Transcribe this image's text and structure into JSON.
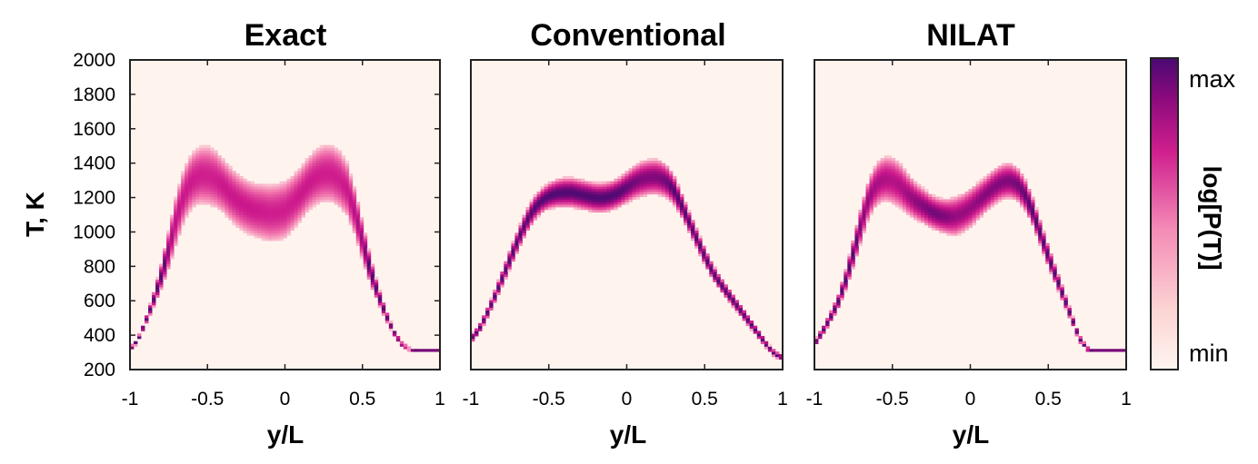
{
  "chart_data": {
    "type": "heatmap",
    "colormap": {
      "low": "#fff5f0",
      "mid": "#d0188c",
      "high": "#4a0a72"
    },
    "xlim": [
      -1,
      1
    ],
    "ylim": [
      200,
      2000
    ],
    "xticks": [
      "-1",
      "-0.5",
      "0",
      "0.5",
      "1"
    ],
    "yticks": [
      "200",
      "400",
      "600",
      "800",
      "1000",
      "1200",
      "1400",
      "1600",
      "1800",
      "2000"
    ],
    "ylabel": "T, K",
    "xlabel": "y/L",
    "colorbar": {
      "label": "log[P(T)]",
      "max_label": "max",
      "min_label": "min"
    },
    "panels": [
      {
        "title": "Exact",
        "band": {
          "y": [
            -1,
            -0.95,
            -0.9,
            -0.85,
            -0.8,
            -0.75,
            -0.7,
            -0.65,
            -0.6,
            -0.55,
            -0.5,
            -0.45,
            -0.4,
            -0.35,
            -0.3,
            -0.25,
            -0.2,
            -0.15,
            -0.1,
            -0.05,
            0,
            0.05,
            0.1,
            0.15,
            0.2,
            0.25,
            0.3,
            0.35,
            0.4,
            0.45,
            0.5,
            0.55,
            0.6,
            0.65,
            0.7,
            0.75,
            0.8,
            0.85,
            0.9,
            0.95,
            1
          ],
          "T_center": [
            320,
            370,
            480,
            600,
            740,
            900,
            1080,
            1220,
            1300,
            1330,
            1330,
            1310,
            1270,
            1220,
            1180,
            1150,
            1130,
            1120,
            1110,
            1115,
            1130,
            1170,
            1220,
            1280,
            1320,
            1340,
            1340,
            1310,
            1250,
            1120,
            950,
            780,
            640,
            520,
            420,
            350,
            320,
            310,
            310,
            310,
            310
          ],
          "T_halfwidth": [
            12,
            14,
            20,
            40,
            70,
            110,
            140,
            150,
            155,
            160,
            165,
            160,
            150,
            150,
            150,
            150,
            150,
            155,
            160,
            160,
            160,
            155,
            150,
            150,
            155,
            160,
            160,
            160,
            150,
            130,
            110,
            80,
            50,
            30,
            18,
            12,
            8,
            8,
            8,
            8,
            8
          ]
        }
      },
      {
        "title": "Conventional",
        "band": {
          "y": [
            -1,
            -0.95,
            -0.9,
            -0.85,
            -0.8,
            -0.75,
            -0.7,
            -0.65,
            -0.6,
            -0.55,
            -0.5,
            -0.45,
            -0.4,
            -0.35,
            -0.3,
            -0.25,
            -0.2,
            -0.15,
            -0.1,
            -0.05,
            0,
            0.05,
            0.1,
            0.15,
            0.2,
            0.25,
            0.3,
            0.35,
            0.4,
            0.45,
            0.5,
            0.55,
            0.6,
            0.65,
            0.7,
            0.75,
            0.8,
            0.85,
            0.9,
            0.95,
            1
          ],
          "T_center": [
            380,
            430,
            520,
            620,
            730,
            840,
            950,
            1050,
            1130,
            1180,
            1210,
            1225,
            1230,
            1230,
            1220,
            1210,
            1200,
            1200,
            1210,
            1230,
            1260,
            1290,
            1310,
            1320,
            1320,
            1300,
            1250,
            1160,
            1060,
            960,
            860,
            770,
            700,
            640,
            580,
            520,
            460,
            400,
            340,
            290,
            270
          ],
          "T_halfwidth": [
            25,
            25,
            30,
            35,
            45,
            55,
            60,
            65,
            70,
            70,
            75,
            80,
            85,
            85,
            85,
            85,
            85,
            85,
            85,
            85,
            90,
            95,
            100,
            100,
            100,
            95,
            85,
            70,
            60,
            55,
            50,
            45,
            40,
            38,
            35,
            32,
            28,
            25,
            20,
            18,
            15
          ]
        }
      },
      {
        "title": "NILAT",
        "band": {
          "y": [
            -1,
            -0.95,
            -0.9,
            -0.85,
            -0.8,
            -0.75,
            -0.7,
            -0.65,
            -0.6,
            -0.55,
            -0.5,
            -0.45,
            -0.4,
            -0.35,
            -0.3,
            -0.25,
            -0.2,
            -0.15,
            -0.1,
            -0.05,
            0,
            0.05,
            0.1,
            0.15,
            0.2,
            0.25,
            0.3,
            0.35,
            0.4,
            0.45,
            0.5,
            0.55,
            0.6,
            0.65,
            0.7,
            0.75,
            0.8,
            0.85,
            0.9,
            0.95,
            1
          ],
          "T_center": [
            350,
            420,
            500,
            590,
            720,
            880,
            1050,
            1200,
            1280,
            1310,
            1300,
            1270,
            1220,
            1180,
            1150,
            1120,
            1100,
            1090,
            1090,
            1110,
            1140,
            1180,
            1220,
            1260,
            1290,
            1300,
            1280,
            1220,
            1120,
            990,
            860,
            740,
            620,
            500,
            380,
            320,
            310,
            310,
            310,
            310,
            310
          ],
          "T_halfwidth": [
            20,
            25,
            30,
            40,
            60,
            80,
            100,
            110,
            120,
            125,
            130,
            125,
            115,
            105,
            100,
            95,
            95,
            100,
            110,
            110,
            110,
            105,
            100,
            100,
            100,
            100,
            95,
            90,
            80,
            70,
            60,
            50,
            40,
            30,
            20,
            12,
            8,
            8,
            8,
            8,
            8
          ]
        }
      }
    ]
  }
}
